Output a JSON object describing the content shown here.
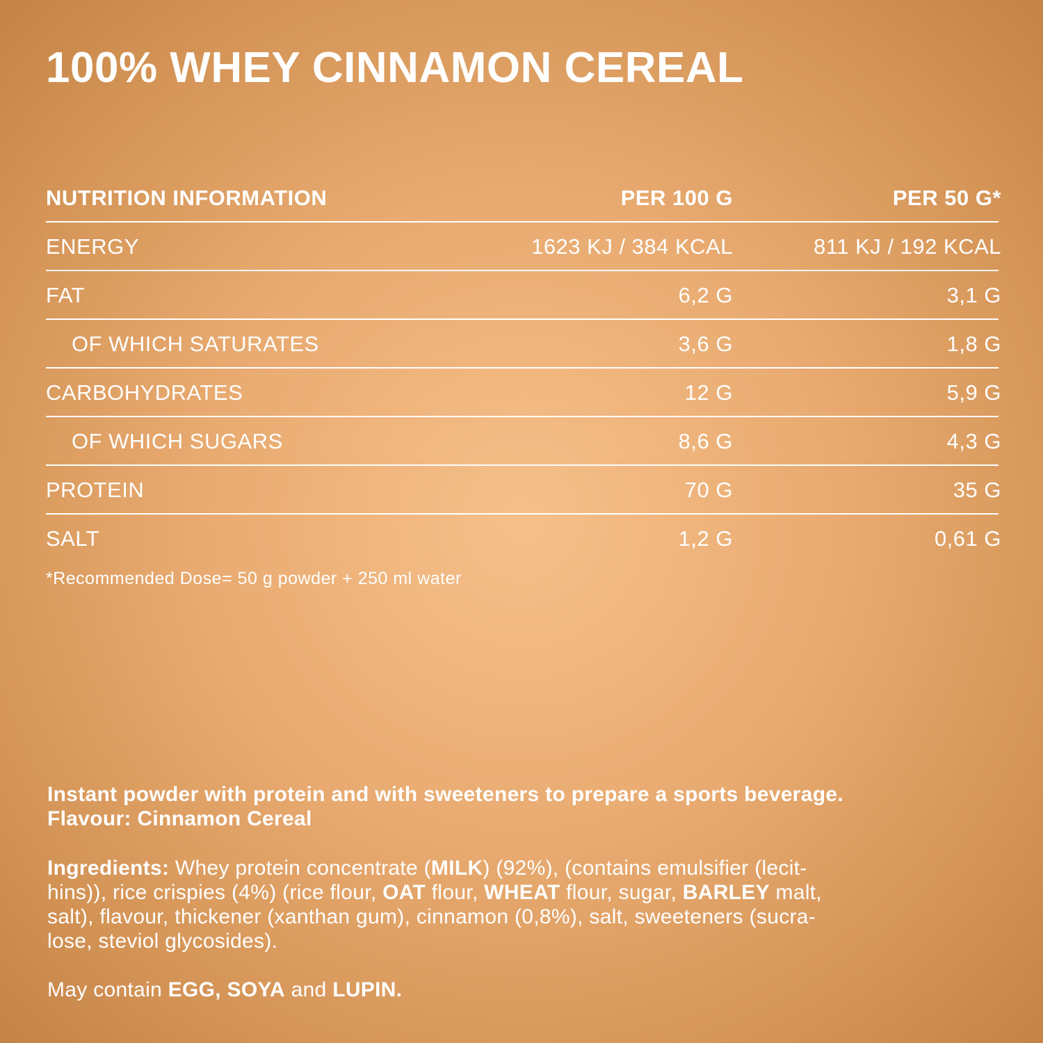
{
  "title": "100% WHEY CINNAMON CEREAL",
  "table": {
    "headers": {
      "label": "NUTRITION INFORMATION",
      "per100": "PER 100 G",
      "per50": "PER 50 G*"
    },
    "rows": [
      {
        "label": "ENERGY",
        "per100": "1623 KJ / 384 KCAL",
        "per50": "811 KJ / 192 KCAL"
      },
      {
        "label": "FAT",
        "per100": "6,2 G",
        "per50": "3,1 G"
      },
      {
        "label": "OF WHICH SATURATES",
        "per100": "3,6 G",
        "per50": "1,8 G"
      },
      {
        "label": "CARBOHYDRATES",
        "per100": "12 G",
        "per50": "5,9 G"
      },
      {
        "label": "OF WHICH SUGARS",
        "per100": "8,6 G",
        "per50": "4,3 G"
      },
      {
        "label": "PROTEIN",
        "per100": "70 G",
        "per50": "35 G"
      },
      {
        "label": "SALT",
        "per100": "1,2 G",
        "per50": "0,61 G"
      }
    ]
  },
  "footnote": "*Recommended Dose= 50 g powder + 250 ml water",
  "description": {
    "line1": "Instant powder with protein and with sweeteners to prepare a sports beverage.",
    "line2": "Flavour: Cinnamon Cereal"
  },
  "ingredients": {
    "label": "Ingredients:",
    "l1_a": " Whey protein concentrate (",
    "l1_b": "MILK",
    "l1_c": ") (92%), (contains emulsifier (lecit-",
    "l2_a": "hins)), rice crispies (4%) (rice flour, ",
    "l2_b": "OAT",
    "l2_c": " flour, ",
    "l2_d": "WHEAT",
    "l2_e": " flour, sugar, ",
    "l2_f": "BARLEY",
    "l2_g": " malt,",
    "l3": "salt), flavour, thickener (xanthan gum), cinnamon (0,8%), salt, sweeteners (sucra-",
    "l4": "lose, steviol glycosides)."
  },
  "allergens": {
    "a": "May contain ",
    "b": "EGG, SOYA",
    "c": " and ",
    "d": "LUPIN."
  }
}
